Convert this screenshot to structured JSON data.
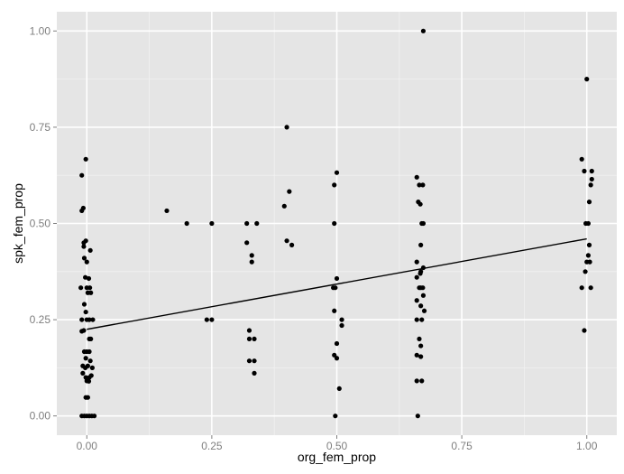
{
  "chart_data": {
    "type": "scatter",
    "title": "",
    "xlabel": "org_fem_prop",
    "ylabel": "spk_fem_prop",
    "xlim": [
      -0.06,
      1.06
    ],
    "ylim": [
      -0.05,
      1.05
    ],
    "x_ticks": [
      0.0,
      0.25,
      0.5,
      0.75,
      1.0
    ],
    "x_tick_labels": [
      "0.00",
      "0.25",
      "0.50",
      "0.75",
      "1.00"
    ],
    "y_ticks": [
      0.0,
      0.25,
      0.5,
      0.75,
      1.0
    ],
    "y_tick_labels": [
      "0.00",
      "0.25",
      "0.50",
      "0.75",
      "1.00"
    ],
    "grid": true,
    "legend": "none",
    "colors": {
      "panel": "#e5e5e5",
      "grid_major": "#ffffff",
      "grid_minor": "#f2f2f2",
      "point": "#000000",
      "line": "#000000"
    },
    "trend_line": {
      "x": [
        0.0,
        1.0
      ],
      "y": [
        0.225,
        0.46
      ]
    },
    "points": [
      [
        -0.01,
        0.0
      ],
      [
        0.0,
        0.0
      ],
      [
        0.005,
        0.0
      ],
      [
        0.01,
        0.0
      ],
      [
        -0.005,
        0.0
      ],
      [
        0.015,
        0.0
      ],
      [
        -0.01,
        0.625
      ],
      [
        -0.002,
        0.667
      ],
      [
        -0.007,
        0.54
      ],
      [
        -0.01,
        0.533
      ],
      [
        -0.006,
        0.45
      ],
      [
        -0.002,
        0.455
      ],
      [
        0.007,
        0.43
      ],
      [
        -0.006,
        0.44
      ],
      [
        -0.005,
        0.41
      ],
      [
        0.0,
        0.4
      ],
      [
        -0.003,
        0.36
      ],
      [
        0.004,
        0.357
      ],
      [
        -0.012,
        0.333
      ],
      [
        0.0,
        0.333
      ],
      [
        0.006,
        0.333
      ],
      [
        0.002,
        0.32
      ],
      [
        0.008,
        0.32
      ],
      [
        -0.005,
        0.29
      ],
      [
        -0.002,
        0.27
      ],
      [
        0.0,
        0.25
      ],
      [
        0.005,
        0.25
      ],
      [
        0.012,
        0.25
      ],
      [
        -0.01,
        0.25
      ],
      [
        -0.01,
        0.22
      ],
      [
        -0.006,
        0.222
      ],
      [
        0.005,
        0.2
      ],
      [
        0.008,
        0.2
      ],
      [
        -0.005,
        0.167
      ],
      [
        0.0,
        0.167
      ],
      [
        0.005,
        0.167
      ],
      [
        -0.002,
        0.15
      ],
      [
        0.007,
        0.143
      ],
      [
        -0.008,
        0.13
      ],
      [
        -0.003,
        0.125
      ],
      [
        0.002,
        0.13
      ],
      [
        0.011,
        0.125
      ],
      [
        -0.008,
        0.111
      ],
      [
        -0.002,
        0.1
      ],
      [
        0.005,
        0.1
      ],
      [
        0.009,
        0.105
      ],
      [
        0.0,
        0.091
      ],
      [
        0.004,
        0.09
      ],
      [
        -0.002,
        0.048
      ],
      [
        0.002,
        0.048
      ],
      [
        0.16,
        0.533
      ],
      [
        0.2,
        0.5
      ],
      [
        0.25,
        0.5
      ],
      [
        0.24,
        0.25
      ],
      [
        0.25,
        0.25
      ],
      [
        0.32,
        0.5
      ],
      [
        0.34,
        0.5
      ],
      [
        0.32,
        0.45
      ],
      [
        0.33,
        0.417
      ],
      [
        0.33,
        0.4
      ],
      [
        0.325,
        0.222
      ],
      [
        0.325,
        0.2
      ],
      [
        0.335,
        0.2
      ],
      [
        0.325,
        0.143
      ],
      [
        0.335,
        0.143
      ],
      [
        0.335,
        0.111
      ],
      [
        0.4,
        0.75
      ],
      [
        0.405,
        0.583
      ],
      [
        0.395,
        0.545
      ],
      [
        0.4,
        0.455
      ],
      [
        0.41,
        0.444
      ],
      [
        0.5,
        0.632
      ],
      [
        0.495,
        0.6
      ],
      [
        0.495,
        0.5
      ],
      [
        0.5,
        0.357
      ],
      [
        0.493,
        0.333
      ],
      [
        0.497,
        0.333
      ],
      [
        0.495,
        0.273
      ],
      [
        0.51,
        0.25
      ],
      [
        0.51,
        0.235
      ],
      [
        0.5,
        0.188
      ],
      [
        0.495,
        0.158
      ],
      [
        0.5,
        0.15
      ],
      [
        0.505,
        0.071
      ],
      [
        0.497,
        0.0
      ],
      [
        0.673,
        1.0
      ],
      [
        0.66,
        0.62
      ],
      [
        0.665,
        0.6
      ],
      [
        0.672,
        0.6
      ],
      [
        0.663,
        0.556
      ],
      [
        0.667,
        0.55
      ],
      [
        0.67,
        0.5
      ],
      [
        0.673,
        0.5
      ],
      [
        0.668,
        0.444
      ],
      [
        0.66,
        0.4
      ],
      [
        0.673,
        0.385
      ],
      [
        0.668,
        0.375
      ],
      [
        0.667,
        0.37
      ],
      [
        0.66,
        0.36
      ],
      [
        0.668,
        0.333
      ],
      [
        0.665,
        0.333
      ],
      [
        0.672,
        0.333
      ],
      [
        0.673,
        0.313
      ],
      [
        0.66,
        0.3
      ],
      [
        0.668,
        0.286
      ],
      [
        0.675,
        0.273
      ],
      [
        0.66,
        0.25
      ],
      [
        0.67,
        0.25
      ],
      [
        0.665,
        0.2
      ],
      [
        0.668,
        0.182
      ],
      [
        0.66,
        0.158
      ],
      [
        0.668,
        0.154
      ],
      [
        0.66,
        0.091
      ],
      [
        0.67,
        0.091
      ],
      [
        0.662,
        0.0
      ],
      [
        1.0,
        0.875
      ],
      [
        0.99,
        0.667
      ],
      [
        0.995,
        0.636
      ],
      [
        1.01,
        0.636
      ],
      [
        1.01,
        0.615
      ],
      [
        1.008,
        0.6
      ],
      [
        1.005,
        0.556
      ],
      [
        0.998,
        0.5
      ],
      [
        1.003,
        0.5
      ],
      [
        1.005,
        0.444
      ],
      [
        1.003,
        0.417
      ],
      [
        1.0,
        0.4
      ],
      [
        1.006,
        0.4
      ],
      [
        0.997,
        0.375
      ],
      [
        0.99,
        0.333
      ],
      [
        1.008,
        0.333
      ],
      [
        0.995,
        0.222
      ]
    ]
  }
}
